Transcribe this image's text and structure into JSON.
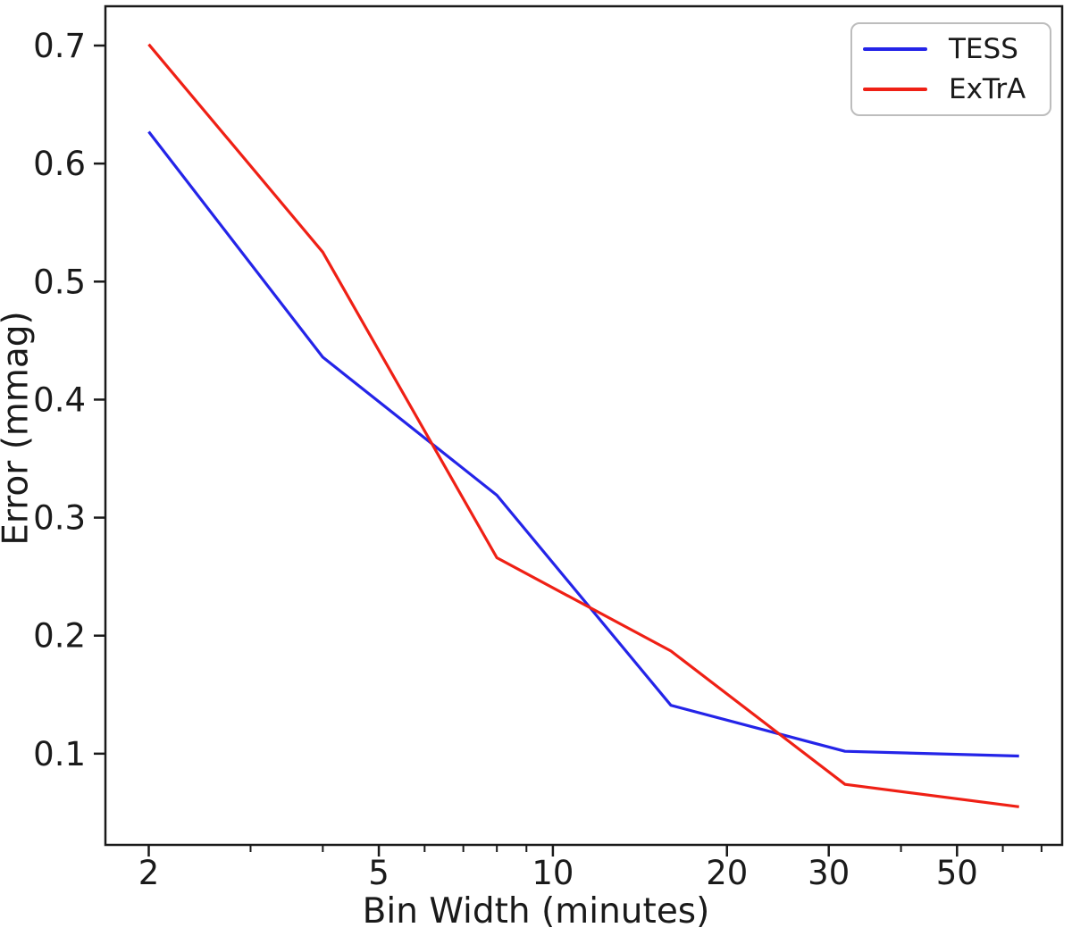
{
  "figure": {
    "background": "#ffffff",
    "spine_color": "#1a1a1a",
    "text_color": "#1a1a1a"
  },
  "chart_data": {
    "type": "line",
    "title": "",
    "xlabel": "Bin Width (minutes)",
    "ylabel": "Error (mmag)",
    "x_scale": "log",
    "y_scale": "linear",
    "grid": false,
    "xlim": [
      1.683,
      76.0
    ],
    "ylim": [
      0.0227,
      0.7333
    ],
    "x_ticks_major": [
      2,
      5,
      10,
      20,
      30,
      50
    ],
    "x_ticks_minor": [
      3,
      4,
      6,
      7,
      8,
      9,
      40,
      60,
      70
    ],
    "y_ticks": [
      0.1,
      0.2,
      0.3,
      0.4,
      0.5,
      0.6,
      0.7
    ],
    "x": [
      2,
      4,
      8,
      16,
      32,
      64
    ],
    "series": [
      {
        "name": "TESS",
        "color": "#2424e8",
        "values": [
          0.627,
          0.436,
          0.319,
          0.141,
          0.102,
          0.098
        ]
      },
      {
        "name": "ExTrA",
        "color": "#ef2015",
        "values": [
          0.701,
          0.525,
          0.266,
          0.187,
          0.074,
          0.055
        ]
      }
    ],
    "legend": {
      "position": "upper right",
      "entries": [
        "TESS",
        "ExTrA"
      ],
      "border_color": "#bdbdbd"
    }
  }
}
